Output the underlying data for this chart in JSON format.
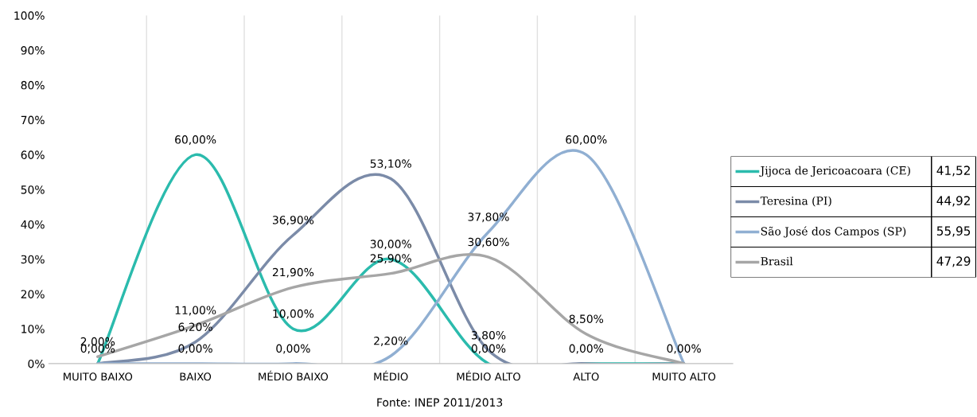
{
  "chart_data": {
    "type": "line",
    "categories": [
      "MUITO BAIXO",
      "BAIXO",
      "MÉDIO BAIXO",
      "MÉDIO",
      "MÉDIO ALTO",
      "ALTO",
      "MUITO ALTO"
    ],
    "series": [
      {
        "name": "Jijoca de Jericoacoara (CE)",
        "color": "#2bbbad",
        "values": [
          0,
          60,
          10,
          30,
          0,
          0,
          0
        ],
        "value_labels": [
          null,
          "60,00%",
          "10,00%",
          "30,00%",
          "0,00%",
          null,
          null
        ]
      },
      {
        "name": "Teresina (PI)",
        "color": "#7b8ba8",
        "values": [
          0,
          6.2,
          36.9,
          53.1,
          3.8,
          0,
          0
        ],
        "value_labels": [
          null,
          "6,20%",
          "36,90%",
          "53,10%",
          "3,80%",
          "0,00%",
          null
        ]
      },
      {
        "name": "São José dos Campos (SP)",
        "color": "#90afd2",
        "values": [
          0,
          0,
          0,
          2.2,
          37.8,
          60,
          0
        ],
        "value_labels": [
          "0,00%",
          "0,00%",
          "0,00%",
          "2,20%",
          "37,80%",
          "60,00%",
          null
        ]
      },
      {
        "name": "Brasil",
        "color": "#a6a6a6",
        "values": [
          2,
          11,
          21.9,
          25.9,
          30.6,
          8.5,
          0
        ],
        "value_labels": [
          "2,00%",
          "11,00%",
          "21,90%",
          "25,90%",
          "30,60%",
          "8,50%",
          "0,00%"
        ]
      }
    ],
    "ylim": [
      0,
      100
    ],
    "yticks": [
      {
        "value": 0,
        "label": "0%"
      },
      {
        "value": 10,
        "label": "10%"
      },
      {
        "value": 20,
        "label": "20%"
      },
      {
        "value": 30,
        "label": "30%"
      },
      {
        "value": 40,
        "label": "40%"
      },
      {
        "value": 50,
        "label": "50%"
      },
      {
        "value": 60,
        "label": "60%"
      },
      {
        "value": 70,
        "label": "70%"
      },
      {
        "value": 80,
        "label": "80%"
      },
      {
        "value": 90,
        "label": "90%"
      },
      {
        "value": 100,
        "label": "100%"
      }
    ],
    "grid": "x",
    "legend": "right",
    "annotations": [
      "Fonte: INEP 2011/2013",
      "41,52",
      "44,92",
      "55,95",
      "47,29"
    ]
  }
}
